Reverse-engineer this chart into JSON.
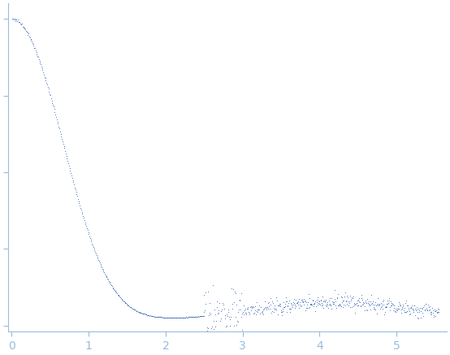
{
  "title": "",
  "xlabel": "",
  "ylabel": "",
  "xlim": [
    -0.05,
    5.65
  ],
  "ylim": [
    -0.02,
    1.05
  ],
  "x_ticks": [
    0,
    1,
    2,
    3,
    4,
    5
  ],
  "y_ticks": [
    0.0,
    0.25,
    0.5,
    0.75,
    1.0
  ],
  "point_color": "#2255aa",
  "axis_color": "#99bbdd",
  "background_color": "#ffffff",
  "point_size": 1.2,
  "figsize": [
    5.54,
    4.37
  ],
  "dpi": 100
}
